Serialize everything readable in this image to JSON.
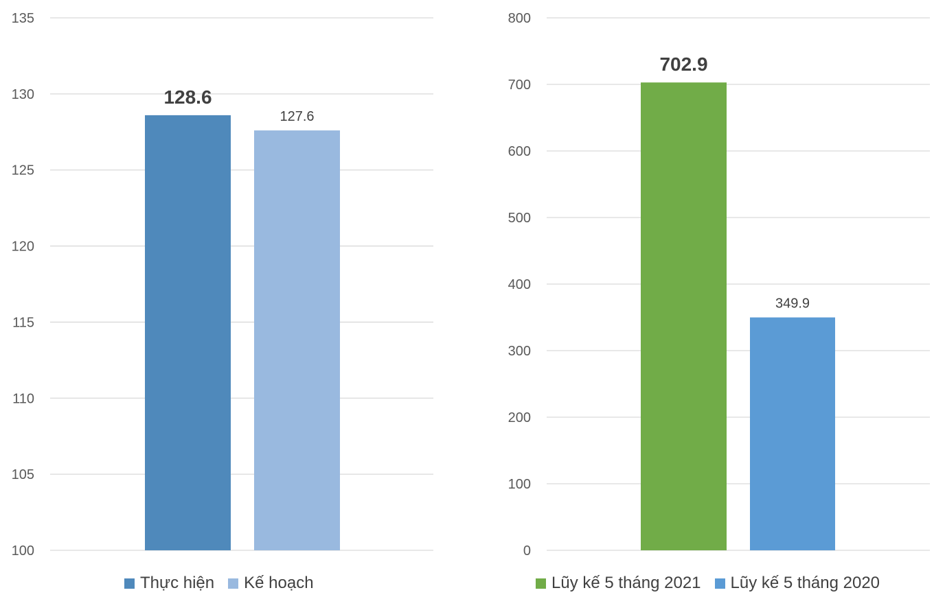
{
  "chart_data": [
    {
      "type": "bar",
      "categories": [
        "Thực hiện",
        "Kế hoạch"
      ],
      "values": [
        128.6,
        127.6
      ],
      "colors": [
        "#4f89bb",
        "#99b9df"
      ],
      "data_labels": [
        "128.6",
        "127.6"
      ],
      "bold_label_index": 0,
      "ylim": [
        100,
        135
      ],
      "yticks": [
        100,
        105,
        110,
        115,
        120,
        125,
        130,
        135
      ],
      "grid": true,
      "legend": "bottom",
      "legend_entries": [
        {
          "label": "Thực hiện",
          "color": "#4f89bb"
        },
        {
          "label": "Kế hoạch",
          "color": "#99b9df"
        }
      ]
    },
    {
      "type": "bar",
      "categories": [
        "Lũy kế 5 tháng 2021",
        "Lũy kế 5 tháng 2020"
      ],
      "values": [
        702.9,
        349.9
      ],
      "colors": [
        "#71ac48",
        "#5b9bd5"
      ],
      "data_labels": [
        "702.9",
        "349.9"
      ],
      "bold_label_index": 0,
      "ylim": [
        0,
        800
      ],
      "yticks": [
        0,
        100,
        200,
        300,
        400,
        500,
        600,
        700,
        800
      ],
      "grid": true,
      "legend": "bottom",
      "legend_entries": [
        {
          "label": "Lũy kế 5 tháng 2021",
          "color": "#71ac48"
        },
        {
          "label": "Lũy kế 5 tháng 2020",
          "color": "#5b9bd5"
        }
      ]
    }
  ]
}
